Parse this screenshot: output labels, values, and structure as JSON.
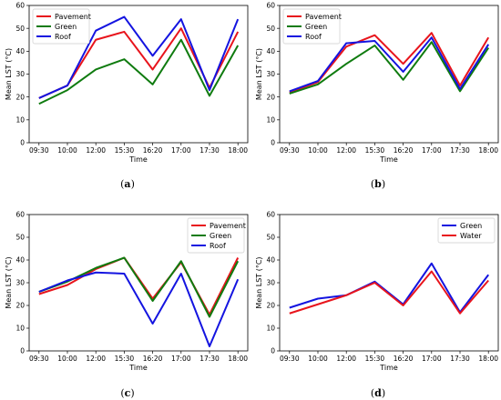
{
  "colors": {
    "Pavement": "#e8141c",
    "Green": "#0f7b0f",
    "Roof": "#1414e0",
    "Water": "#e8141c",
    "GreenBlue": "#1414e0"
  },
  "chart_data": [
    {
      "type": "line",
      "panel_label": "(a)",
      "categories": [
        "09:30",
        "10:00",
        "12:00",
        "15:30",
        "16:20",
        "17:00",
        "17:30",
        "18:00"
      ],
      "xlabel": "Time",
      "ylabel": "Mean LST (°C)",
      "ylim": [
        0,
        60
      ],
      "yticks": [
        0,
        10,
        20,
        30,
        40,
        50,
        60
      ],
      "legend_position": "top-left",
      "series": [
        {
          "name": "Pavement",
          "color": "#e8141c",
          "values": [
            19.5,
            25,
            45,
            48.5,
            32,
            50,
            24,
            48.5
          ]
        },
        {
          "name": "Green",
          "color": "#0f7b0f",
          "values": [
            17,
            23,
            32,
            36.5,
            25.5,
            45,
            20.5,
            42.5
          ]
        },
        {
          "name": "Roof",
          "color": "#1414e0",
          "values": [
            19.5,
            25,
            49,
            55,
            38,
            54,
            23,
            54
          ]
        }
      ]
    },
    {
      "type": "line",
      "panel_label": "(b)",
      "categories": [
        "09:30",
        "10:00",
        "12:00",
        "15:30",
        "16:20",
        "17:00",
        "17:30",
        "18:00"
      ],
      "xlabel": "Time",
      "ylabel": "Mean LST (°C)",
      "ylim": [
        0,
        60
      ],
      "yticks": [
        0,
        10,
        20,
        30,
        40,
        50,
        60
      ],
      "legend_position": "top-left",
      "series": [
        {
          "name": "Pavement",
          "color": "#e8141c",
          "values": [
            22,
            26.5,
            42,
            47,
            34.5,
            48,
            25,
            46
          ]
        },
        {
          "name": "Green",
          "color": "#0f7b0f",
          "values": [
            21.5,
            25.5,
            34.5,
            42.5,
            27.5,
            44,
            22.5,
            41.5
          ]
        },
        {
          "name": "Roof",
          "color": "#1414e0",
          "values": [
            22.5,
            27,
            43.5,
            44.5,
            31,
            46,
            23.5,
            43
          ]
        }
      ]
    },
    {
      "type": "line",
      "panel_label": "(c)",
      "categories": [
        "09:30",
        "10:00",
        "12:00",
        "15:30",
        "16:20",
        "17:00",
        "17:30",
        "18:00"
      ],
      "xlabel": "Time",
      "ylabel": "Mean LST (°C)",
      "ylim": [
        0,
        60
      ],
      "yticks": [
        0,
        10,
        20,
        30,
        40,
        50,
        60
      ],
      "legend_position": "top-right",
      "series": [
        {
          "name": "Pavement",
          "color": "#e8141c",
          "values": [
            25,
            29,
            36,
            41,
            23,
            39,
            16,
            41
          ]
        },
        {
          "name": "Green",
          "color": "#0f7b0f",
          "values": [
            26,
            30.5,
            36.5,
            41,
            22,
            39.5,
            15,
            39.5
          ]
        },
        {
          "name": "Roof",
          "color": "#1414e0",
          "values": [
            26,
            31,
            34.5,
            34,
            12,
            34,
            2,
            31.5
          ]
        }
      ]
    },
    {
      "type": "line",
      "panel_label": "(d)",
      "categories": [
        "09:30",
        "10:00",
        "12:00",
        "15:30",
        "16:20",
        "17:00",
        "17:30",
        "18:00"
      ],
      "xlabel": "Time",
      "ylabel": "Mean LST (°C)",
      "ylim": [
        0,
        60
      ],
      "yticks": [
        0,
        10,
        20,
        30,
        40,
        50,
        60
      ],
      "legend_position": "top-right",
      "series": [
        {
          "name": "Green",
          "color": "#1414e0",
          "values": [
            19,
            23,
            24.5,
            30.5,
            20.5,
            38.5,
            17,
            33.5
          ]
        },
        {
          "name": "Water",
          "color": "#e8141c",
          "values": [
            16.5,
            20.5,
            24.5,
            30,
            20,
            35,
            16.5,
            31
          ]
        }
      ]
    }
  ]
}
